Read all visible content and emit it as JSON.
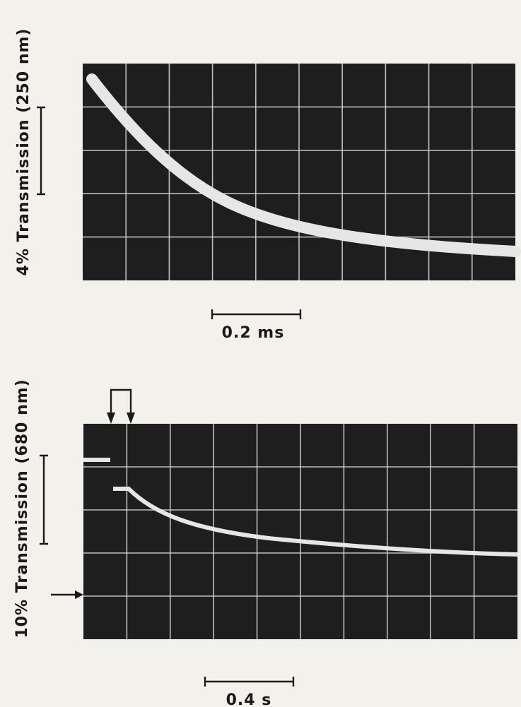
{
  "panels": [
    {
      "y_label": "4% Transmission (250 nm)",
      "time_scale": "0.2 ms"
    },
    {
      "y_label": "10% Transmission (680 nm)",
      "time_scale": "0.4 s"
    }
  ]
}
